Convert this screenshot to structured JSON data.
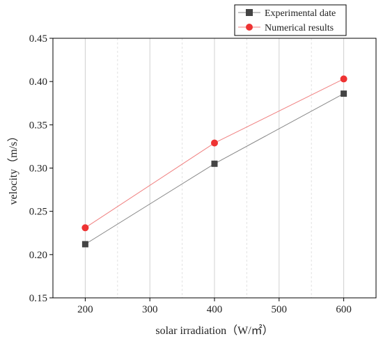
{
  "chart_data": {
    "type": "line",
    "title": "",
    "xlabel": "solar irradiation（W/㎡）",
    "ylabel": "velocity（m/s）",
    "xlim": [
      150,
      650
    ],
    "ylim": [
      0.15,
      0.45
    ],
    "x_ticks": [
      200,
      300,
      400,
      500,
      600
    ],
    "x_tick_labels": [
      "200",
      "300",
      "400",
      "500",
      "600"
    ],
    "y_ticks": [
      0.15,
      0.2,
      0.25,
      0.3,
      0.35,
      0.4,
      0.45
    ],
    "y_tick_labels": [
      "0.15",
      "0.20",
      "0.25",
      "0.30",
      "0.35",
      "0.40",
      "0.45"
    ],
    "grid": "vertical",
    "legend_position": "top-right",
    "x": [
      200,
      400,
      600
    ],
    "series": [
      {
        "name": "Experimental date",
        "values": [
          0.212,
          0.305,
          0.386
        ],
        "marker": "square",
        "color": "#444444",
        "line_color": "#888888"
      },
      {
        "name": "Numerical results",
        "values": [
          0.231,
          0.329,
          0.403
        ],
        "marker": "circle",
        "color": "#ee3333",
        "line_color": "#f08080"
      }
    ]
  }
}
